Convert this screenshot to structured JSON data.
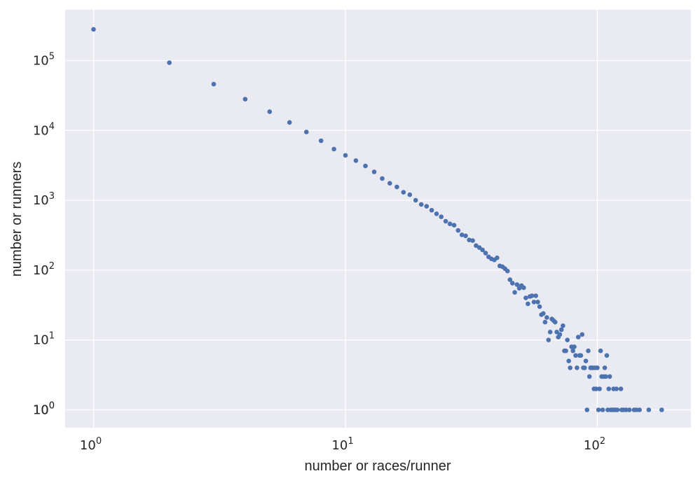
{
  "chart_data": {
    "type": "scatter",
    "title": "",
    "xlabel": "number or races/runner",
    "ylabel": "number or runners",
    "xscale": "log",
    "yscale": "log",
    "xlim": [
      0.7,
      250
    ],
    "ylim": [
      0.55,
      1000000
    ],
    "grid": true,
    "style": "seaborn darkgrid",
    "colors": {
      "background": "#eaeaf2",
      "grid": "#ffffff",
      "marker": "#4c72b0",
      "text": "#262626"
    },
    "x_ticks": [
      {
        "value": 1,
        "base": "10",
        "exp": "0"
      },
      {
        "value": 10,
        "base": "10",
        "exp": "1"
      },
      {
        "value": 100,
        "base": "10",
        "exp": "2"
      }
    ],
    "y_ticks": [
      {
        "value": 1,
        "base": "10",
        "exp": "0"
      },
      {
        "value": 10,
        "base": "10",
        "exp": "1"
      },
      {
        "value": 100,
        "base": "10",
        "exp": "2"
      },
      {
        "value": 1000,
        "base": "10",
        "exp": "3"
      },
      {
        "value": 10000,
        "base": "10",
        "exp": "4"
      },
      {
        "value": 100000,
        "base": "10",
        "exp": "5"
      }
    ],
    "y_tick_extra": [
      {
        "value": 1,
        "base": "10",
        "exp": "0"
      }
    ],
    "points": [
      [
        1,
        280000
      ],
      [
        2,
        93000
      ],
      [
        3,
        46000
      ],
      [
        4,
        28000
      ],
      [
        5,
        18500
      ],
      [
        6,
        13000
      ],
      [
        7,
        9500
      ],
      [
        8,
        7100
      ],
      [
        9,
        5400
      ],
      [
        10,
        4400
      ],
      [
        11,
        3700
      ],
      [
        12,
        3100
      ],
      [
        13,
        2550
      ],
      [
        14,
        2050
      ],
      [
        15,
        1750
      ],
      [
        16,
        1550
      ],
      [
        17,
        1300
      ],
      [
        18,
        1200
      ],
      [
        19,
        1000
      ],
      [
        20,
        870
      ],
      [
        21,
        820
      ],
      [
        22,
        720
      ],
      [
        23,
        640
      ],
      [
        24,
        580
      ],
      [
        25,
        500
      ],
      [
        26,
        460
      ],
      [
        27,
        440
      ],
      [
        28,
        370
      ],
      [
        29,
        320
      ],
      [
        30,
        310
      ],
      [
        31,
        270
      ],
      [
        32,
        265
      ],
      [
        33,
        225
      ],
      [
        34,
        210
      ],
      [
        35,
        195
      ],
      [
        36,
        175
      ],
      [
        37,
        155
      ],
      [
        38,
        145
      ],
      [
        39,
        140
      ],
      [
        40,
        150
      ],
      [
        41,
        115
      ],
      [
        42,
        112
      ],
      [
        43,
        105
      ],
      [
        44,
        97
      ],
      [
        45,
        73
      ],
      [
        46,
        65
      ],
      [
        47,
        48
      ],
      [
        48,
        62
      ],
      [
        49,
        55
      ],
      [
        50,
        60
      ],
      [
        51,
        56
      ],
      [
        52,
        40
      ],
      [
        53,
        33
      ],
      [
        54,
        42
      ],
      [
        55,
        43
      ],
      [
        56,
        35
      ],
      [
        57,
        43
      ],
      [
        58,
        35
      ],
      [
        59,
        30
      ],
      [
        60,
        23
      ],
      [
        61,
        24
      ],
      [
        62,
        18
      ],
      [
        63,
        21
      ],
      [
        64,
        10
      ],
      [
        65,
        13
      ],
      [
        66,
        20
      ],
      [
        67,
        19
      ],
      [
        68,
        18
      ],
      [
        69,
        13
      ],
      [
        70,
        11
      ],
      [
        71,
        12
      ],
      [
        72,
        14
      ],
      [
        73,
        16
      ],
      [
        74,
        7
      ],
      [
        75,
        7
      ],
      [
        76,
        10
      ],
      [
        77,
        5
      ],
      [
        78,
        4
      ],
      [
        79,
        8
      ],
      [
        80,
        7
      ],
      [
        81,
        8
      ],
      [
        82,
        6
      ],
      [
        83,
        4
      ],
      [
        84,
        11
      ],
      [
        85,
        6
      ],
      [
        86,
        6
      ],
      [
        87,
        12
      ],
      [
        88,
        4
      ],
      [
        89,
        4
      ],
      [
        90,
        5
      ],
      [
        91,
        1
      ],
      [
        92,
        7
      ],
      [
        93,
        3
      ],
      [
        94,
        4
      ],
      [
        95,
        4
      ],
      [
        96,
        4
      ],
      [
        97,
        2
      ],
      [
        98,
        4
      ],
      [
        99,
        2
      ],
      [
        100,
        4
      ],
      [
        101,
        1
      ],
      [
        102,
        2
      ],
      [
        103,
        7
      ],
      [
        104,
        3
      ],
      [
        105,
        1
      ],
      [
        106,
        3
      ],
      [
        107,
        4
      ],
      [
        108,
        3
      ],
      [
        109,
        6
      ],
      [
        110,
        1
      ],
      [
        111,
        2
      ],
      [
        112,
        3
      ],
      [
        113,
        1
      ],
      [
        114,
        1
      ],
      [
        115,
        1
      ],
      [
        116,
        2
      ],
      [
        117,
        1
      ],
      [
        118,
        1
      ],
      [
        119,
        2
      ],
      [
        120,
        1
      ],
      [
        124,
        2
      ],
      [
        125,
        1
      ],
      [
        127,
        1
      ],
      [
        130,
        1
      ],
      [
        134,
        1
      ],
      [
        140,
        1
      ],
      [
        143,
        1
      ],
      [
        147,
        1
      ],
      [
        160,
        1
      ],
      [
        180,
        1
      ]
    ]
  }
}
